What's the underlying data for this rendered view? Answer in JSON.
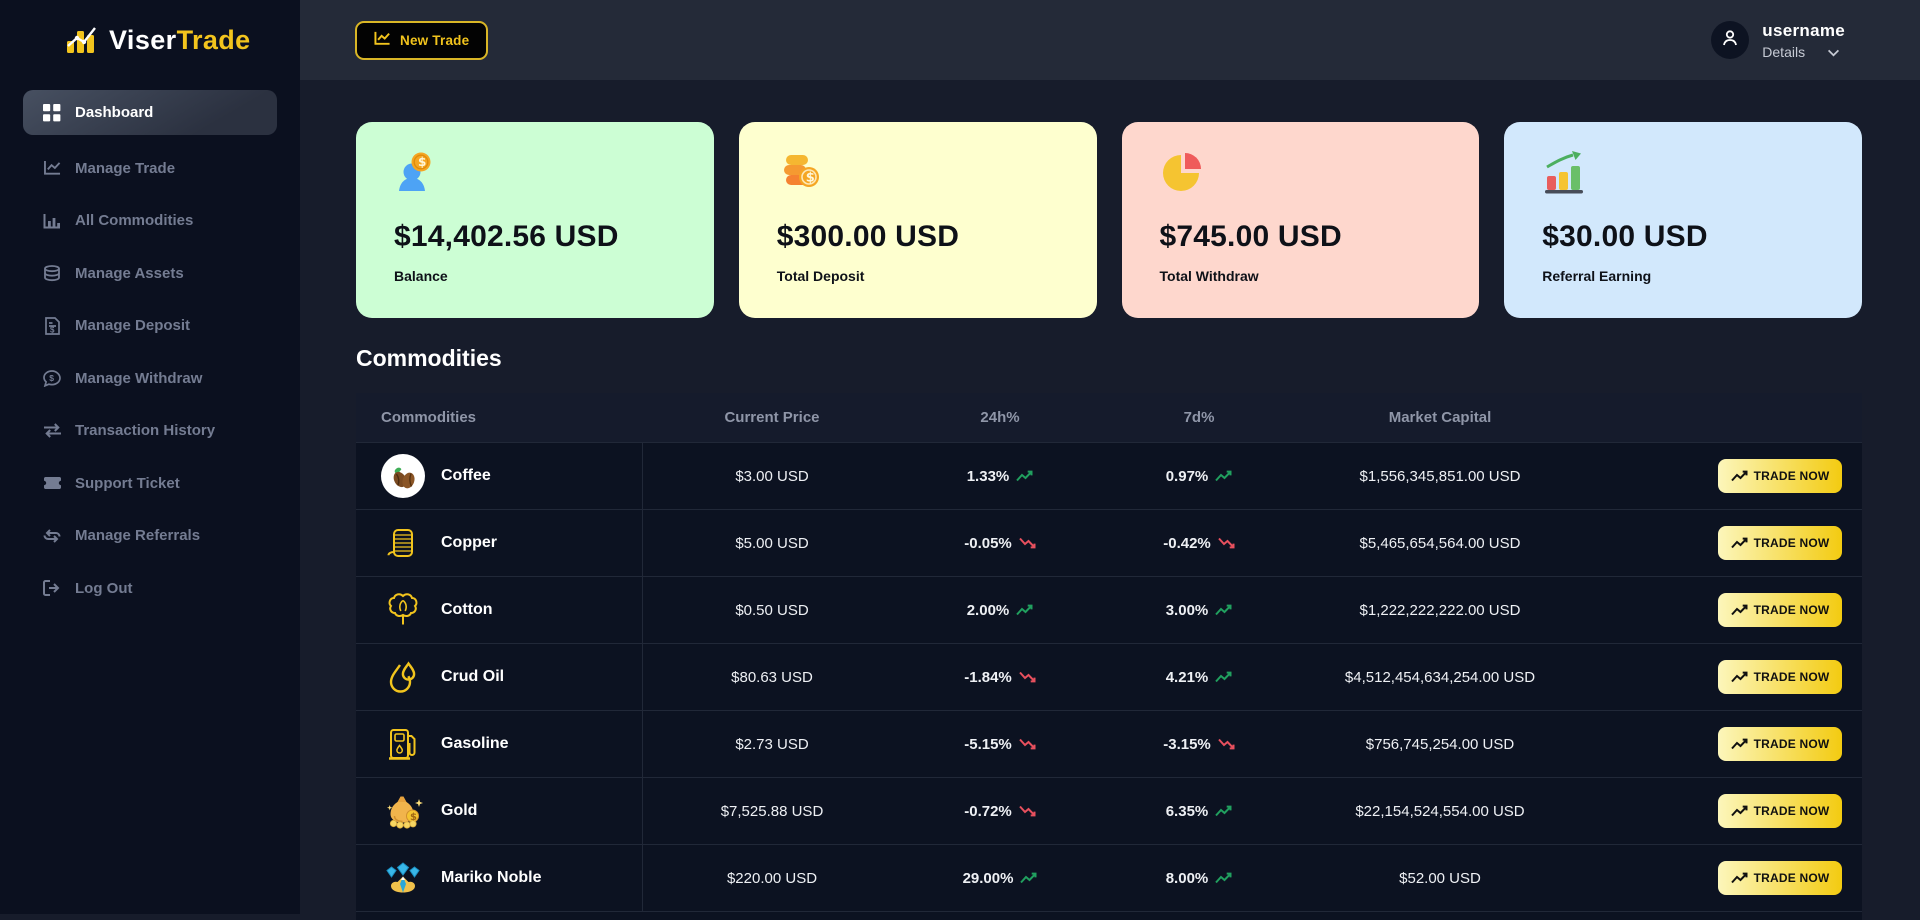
{
  "brand": {
    "name_primary": "Viser",
    "name_secondary": "Trade",
    "logo_icon": "bar-chart-logo-icon"
  },
  "topbar": {
    "new_trade_label": "New Trade",
    "new_trade_icon": "chart-line-icon",
    "username": "username",
    "details_label": "Details",
    "avatar_icon": "person-icon",
    "chevron_icon": "chevron-down-icon"
  },
  "sidebar": {
    "items": [
      {
        "label": "Dashboard",
        "icon": "dashboard-grid-icon",
        "active": true
      },
      {
        "label": "Manage Trade",
        "icon": "chart-line-icon",
        "active": false
      },
      {
        "label": "All Commodities",
        "icon": "chart-bars-icon",
        "active": false
      },
      {
        "label": "Manage Assets",
        "icon": "coins-icon",
        "active": false
      },
      {
        "label": "Manage Deposit",
        "icon": "invoice-dollar-icon",
        "active": false
      },
      {
        "label": "Manage Withdraw",
        "icon": "comment-dollar-icon",
        "active": false
      },
      {
        "label": "Transaction History",
        "icon": "exchange-arrows-icon",
        "active": false
      },
      {
        "label": "Support Ticket",
        "icon": "ticket-icon",
        "active": false
      },
      {
        "label": "Manage Referrals",
        "icon": "repeat-arrows-icon",
        "active": false
      },
      {
        "label": "Log Out",
        "icon": "sign-out-icon",
        "active": false
      }
    ]
  },
  "cards": [
    {
      "amount": "$14,402.56 USD",
      "label": "Balance",
      "icon": "user-dollar-icon",
      "bg": "#ccfed4"
    },
    {
      "amount": "$300.00 USD",
      "label": "Total Deposit",
      "icon": "coin-stack-icon",
      "bg": "#feffcf"
    },
    {
      "amount": "$745.00 USD",
      "label": "Total Withdraw",
      "icon": "pie-chart-icon",
      "bg": "#fed7cd"
    },
    {
      "amount": "$30.00 USD",
      "label": "Referral Earning",
      "icon": "growth-chart-icon",
      "bg": "#d2e8fc"
    }
  ],
  "section_title": "Commodities",
  "table": {
    "headers": [
      "Commodities",
      "Current Price",
      "24h%",
      "7d%",
      "Market Capital"
    ],
    "trade_button_label": "TRADE NOW",
    "rows": [
      {
        "name": "Coffee",
        "icon": "coffee-icon",
        "price": "$3.00 USD",
        "h24": "1.33%",
        "h24_dir": "up",
        "d7": "0.97%",
        "d7_dir": "up",
        "market_cap": "$1,556,345,851.00 USD"
      },
      {
        "name": "Copper",
        "icon": "copper-icon",
        "price": "$5.00 USD",
        "h24": "-0.05%",
        "h24_dir": "down",
        "d7": "-0.42%",
        "d7_dir": "down",
        "market_cap": "$5,465,654,564.00 USD"
      },
      {
        "name": "Cotton",
        "icon": "cotton-icon",
        "price": "$0.50 USD",
        "h24": "2.00%",
        "h24_dir": "up",
        "d7": "3.00%",
        "d7_dir": "up",
        "market_cap": "$1,222,222,222.00 USD"
      },
      {
        "name": "Crud Oil",
        "icon": "oil-drop-icon",
        "price": "$80.63 USD",
        "h24": "-1.84%",
        "h24_dir": "down",
        "d7": "4.21%",
        "d7_dir": "up",
        "market_cap": "$4,512,454,634,254.00 USD"
      },
      {
        "name": "Gasoline",
        "icon": "gas-pump-icon",
        "price": "$2.73 USD",
        "h24": "-5.15%",
        "h24_dir": "down",
        "d7": "-3.15%",
        "d7_dir": "down",
        "market_cap": "$756,745,254.00 USD"
      },
      {
        "name": "Gold",
        "icon": "money-bag-icon",
        "price": "$7,525.88 USD",
        "h24": "-0.72%",
        "h24_dir": "down",
        "d7": "6.35%",
        "d7_dir": "up",
        "market_cap": "$22,154,524,554.00 USD"
      },
      {
        "name": "Mariko Noble",
        "icon": "diamond-icon",
        "price": "$220.00 USD",
        "h24": "29.00%",
        "h24_dir": "up",
        "d7": "8.00%",
        "d7_dir": "up",
        "market_cap": "$52.00 USD"
      }
    ]
  },
  "colors": {
    "accent": "#f2c41d",
    "positive": "#21a05f",
    "negative": "#e8505e",
    "sidebar_bg": "#0b101f",
    "topbar_bg": "#242a38",
    "content_bg": "#171c2b",
    "row_bg": "#0c1221",
    "header_row_bg": "#151b2c"
  }
}
